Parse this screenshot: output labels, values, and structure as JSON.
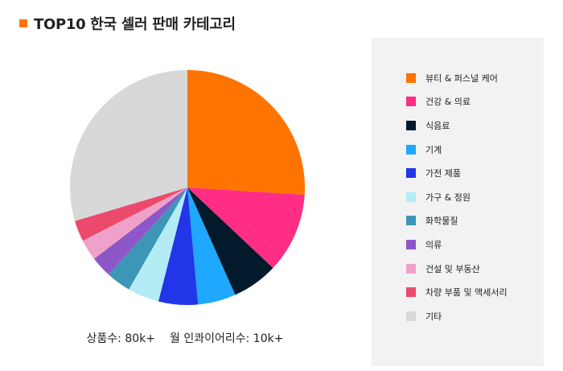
{
  "title": "TOP10 한국 셀러 판매 카테고리",
  "title_color": "#ff7700",
  "stats": {
    "products": "상품수: 80k+",
    "inquiries": "월 인콰이어리수: 10k+"
  },
  "chart_data": {
    "type": "pie",
    "title": "TOP10 한국 셀러 판매 카테고리",
    "legend_position": "right",
    "unit": "%",
    "slices": [
      {
        "label": "뷰티 & 퍼스널 케어",
        "value": 28.8,
        "color": "#ff7300"
      },
      {
        "label": "건강 & 의료",
        "value": 12.2,
        "color": "#ff2d84"
      },
      {
        "label": "식음료",
        "value": 7.0,
        "color": "#021a2b"
      },
      {
        "label": "기계",
        "value": 5.8,
        "color": "#1ea8ff"
      },
      {
        "label": "가전 제품",
        "value": 6.0,
        "color": "#2235e8"
      },
      {
        "label": "가구 & 정원",
        "value": 4.8,
        "color": "#b3ecf5"
      },
      {
        "label": "화학물질",
        "value": 3.8,
        "color": "#3d96b6"
      },
      {
        "label": "의류",
        "value": 3.2,
        "color": "#8e57c9"
      },
      {
        "label": "건설 및 부동산",
        "value": 3.2,
        "color": "#f0a1c9"
      },
      {
        "label": "차량 부품 및 액세서리",
        "value": 3.2,
        "color": "#ec4a6c"
      },
      {
        "label": "기타",
        "value": 32.8,
        "color": "#d8d8d8"
      }
    ]
  }
}
